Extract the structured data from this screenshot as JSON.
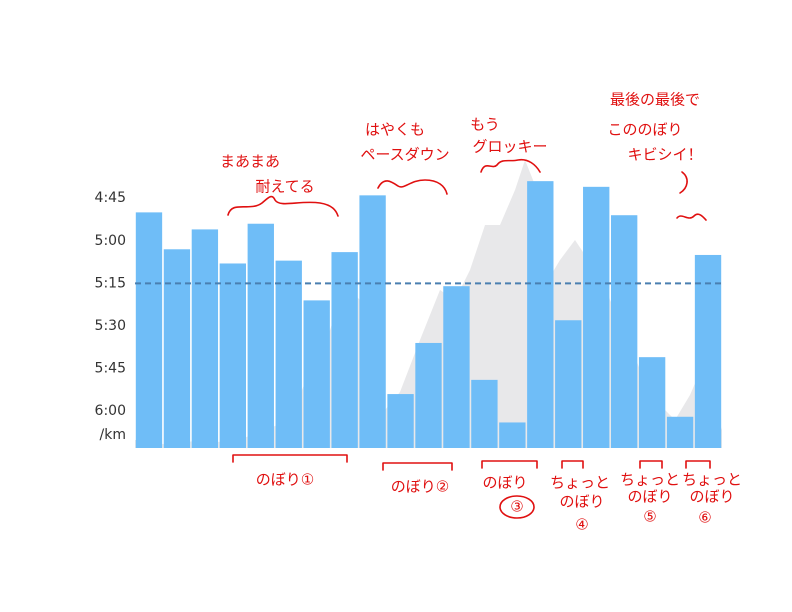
{
  "chart_data": {
    "type": "bar",
    "y_label": "/km",
    "categories": [
      null,
      null,
      null,
      null,
      null,
      null,
      null,
      null,
      null,
      null,
      null,
      null,
      null,
      null,
      null,
      null,
      null,
      null,
      null,
      null,
      null
    ],
    "values": [
      290,
      303,
      296,
      308,
      294,
      307,
      321,
      304,
      284,
      354,
      336,
      316,
      349,
      364,
      279,
      328,
      281,
      291,
      341,
      362,
      305
    ],
    "color": "#6fbdf7",
    "average": 315,
    "average_color": "#4a7fb0",
    "ylim": [
      373,
      270
    ],
    "yticks": [
      {
        "value": 285,
        "label": "4:45"
      },
      {
        "value": 300,
        "label": "5:00"
      },
      {
        "value": 315,
        "label": "5:15"
      },
      {
        "value": 330,
        "label": "5:30"
      },
      {
        "value": 345,
        "label": "5:45"
      },
      {
        "value": 360,
        "label": "6:00"
      }
    ],
    "annotations": [
      "まあまあ",
      "耐えてる",
      "はやくも",
      "ペースダウン",
      "もう",
      "グロッキー",
      "最後の最後で",
      "こののぼり",
      "キビシイ！",
      "のぼり①",
      "のぼり②",
      "のぼり",
      "③",
      "ちょっと",
      "のぼり",
      "④",
      "ちょっと",
      "のぼり",
      "⑤",
      "ちょっと",
      "のぼり",
      "⑥"
    ]
  }
}
